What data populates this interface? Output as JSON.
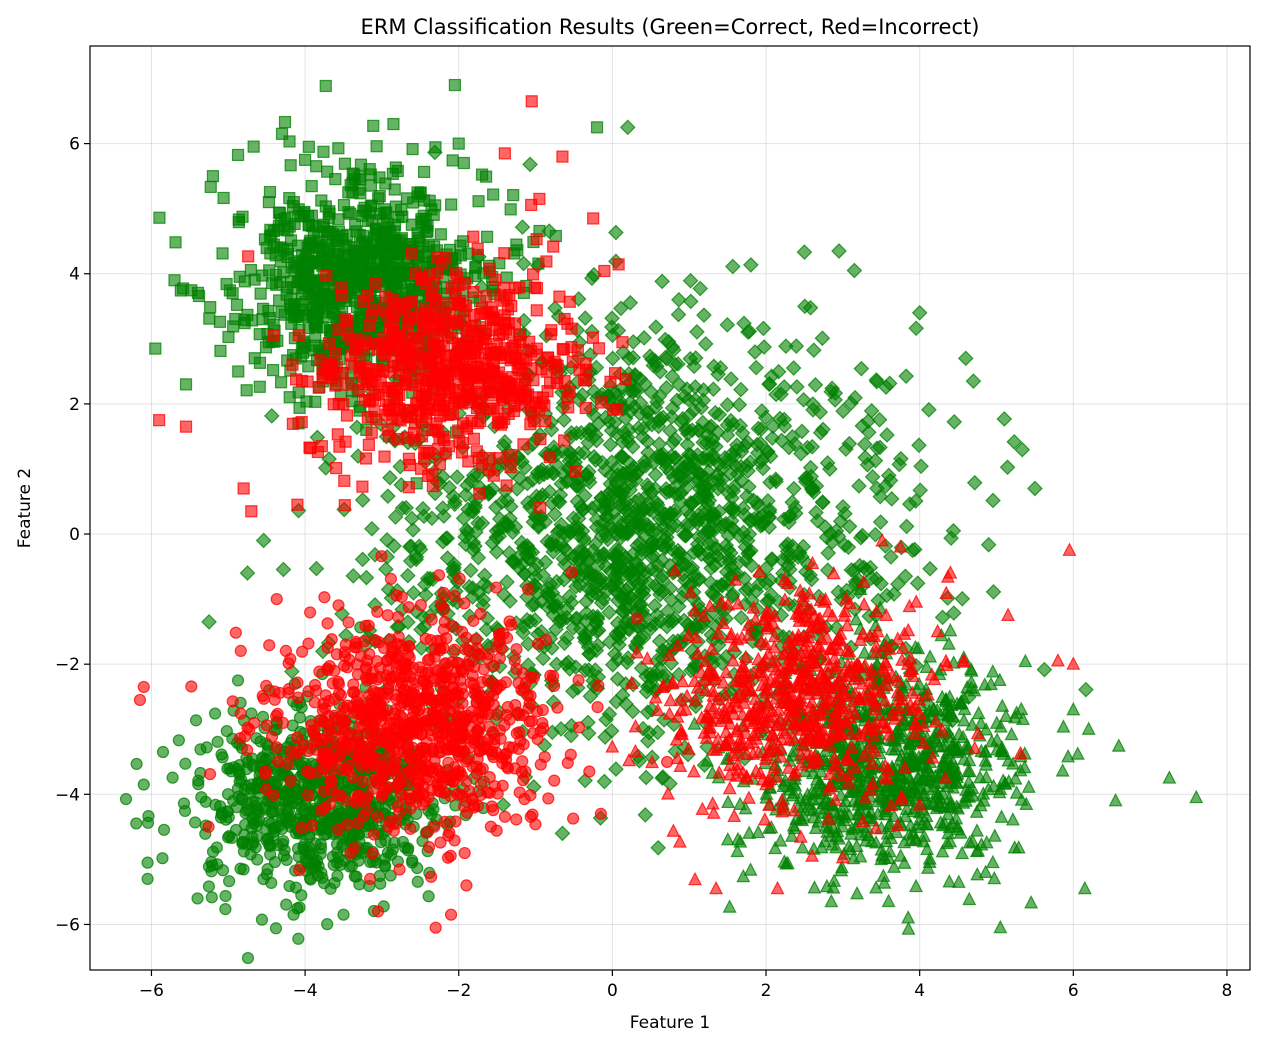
{
  "chart_data": {
    "type": "scatter",
    "title": "ERM Classification Results (Green=Correct, Red=Incorrect)",
    "xlabel": "Feature 1",
    "ylabel": "Feature 2",
    "xlim": [
      -6.8,
      8.3
    ],
    "ylim": [
      -6.7,
      7.5
    ],
    "xticks": [
      -6,
      -4,
      -2,
      0,
      2,
      4,
      6,
      8
    ],
    "yticks": [
      -6,
      -4,
      -2,
      0,
      2,
      4,
      6
    ],
    "xtick_labels": [
      "−6",
      "−4",
      "−2",
      "0",
      "2",
      "4",
      "6",
      "8"
    ],
    "ytick_labels": [
      "−6",
      "−4",
      "−2",
      "0",
      "2",
      "4",
      "6"
    ],
    "grid": true,
    "colors": {
      "correct": "#008000",
      "incorrect": "#ff0000"
    },
    "marker_alpha": 0.6,
    "classes": [
      {
        "marker": "square",
        "correct_center": [
          -3.3,
          3.8
        ],
        "correct_spread": [
          0.8,
          0.85
        ],
        "correct_count": 900,
        "incorrect_center": [
          -2.1,
          2.6
        ],
        "incorrect_spread": [
          0.85,
          0.75
        ],
        "incorrect_count": 650,
        "points_correct": [
          [
            -2.05,
            6.9
          ],
          [
            -2.85,
            6.3
          ],
          [
            -4.3,
            6.15
          ],
          [
            -0.2,
            6.25
          ],
          [
            -5.7,
            3.9
          ],
          [
            -5.95,
            2.85
          ],
          [
            -5.55,
            2.3
          ],
          [
            -5.2,
            5.5
          ],
          [
            -2.0,
            6.0
          ],
          [
            -4.0,
            5.75
          ]
        ],
        "points_incorrect": [
          [
            -1.05,
            6.65
          ],
          [
            -0.65,
            5.8
          ],
          [
            -1.4,
            5.85
          ],
          [
            -0.95,
            5.15
          ],
          [
            -0.25,
            4.85
          ],
          [
            -5.9,
            1.75
          ],
          [
            -5.55,
            1.65
          ],
          [
            -4.8,
            0.7
          ],
          [
            -4.7,
            0.35
          ],
          [
            -4.1,
            0.45
          ]
        ]
      },
      {
        "marker": "diamond",
        "correct_center": [
          0.4,
          0.1
        ],
        "correct_spread": [
          1.7,
          1.55
        ],
        "correct_count": 1700,
        "incorrect_center": [
          0.0,
          0.0
        ],
        "incorrect_spread": [
          0.0,
          0.0
        ],
        "incorrect_count": 0,
        "points_correct": [
          [
            0.2,
            6.25
          ],
          [
            2.95,
            4.35
          ],
          [
            3.15,
            4.05
          ],
          [
            5.5,
            0.7
          ],
          [
            4.0,
            3.4
          ],
          [
            4.6,
            2.7
          ],
          [
            4.7,
            2.35
          ],
          [
            -5.25,
            -1.35
          ],
          [
            -4.75,
            -0.6
          ],
          [
            -0.65,
            -4.6
          ]
        ],
        "points_incorrect": []
      },
      {
        "marker": "triangle",
        "correct_center": [
          3.6,
          -3.6
        ],
        "correct_spread": [
          0.9,
          0.8
        ],
        "correct_count": 900,
        "incorrect_center": [
          2.4,
          -2.5
        ],
        "incorrect_spread": [
          0.85,
          0.8
        ],
        "incorrect_count": 650,
        "points_correct": [
          [
            7.6,
            -4.05
          ],
          [
            7.25,
            -3.75
          ],
          [
            6.55,
            -4.1
          ],
          [
            6.15,
            -5.45
          ],
          [
            5.05,
            -6.05
          ],
          [
            6.0,
            -2.7
          ],
          [
            6.2,
            -3.0
          ],
          [
            3.85,
            -5.9
          ],
          [
            2.85,
            -5.65
          ]
        ],
        "points_incorrect": [
          [
            5.95,
            -0.25
          ],
          [
            6.0,
            -2.0
          ],
          [
            5.8,
            -1.95
          ],
          [
            5.15,
            -1.25
          ],
          [
            4.4,
            -0.6
          ],
          [
            3.75,
            -0.2
          ],
          [
            1.35,
            -5.45
          ],
          [
            2.15,
            -5.45
          ],
          [
            2.6,
            -4.95
          ]
        ]
      },
      {
        "marker": "circle",
        "correct_center": [
          -3.8,
          -4.1
        ],
        "correct_spread": [
          0.8,
          0.7
        ],
        "correct_count": 800,
        "incorrect_center": [
          -2.6,
          -2.9
        ],
        "incorrect_spread": [
          0.85,
          0.85
        ],
        "incorrect_count": 900,
        "points_correct": [
          [
            -6.05,
            -5.3
          ],
          [
            -6.05,
            -5.05
          ],
          [
            -5.4,
            -5.6
          ],
          [
            -4.15,
            -5.85
          ],
          [
            -3.5,
            -5.85
          ],
          [
            -6.1,
            -3.85
          ],
          [
            -5.85,
            -3.35
          ],
          [
            -4.05,
            -5.55
          ]
        ],
        "points_incorrect": [
          [
            -6.15,
            -2.55
          ],
          [
            -6.1,
            -2.35
          ],
          [
            -2.3,
            -6.05
          ],
          [
            -2.1,
            -5.85
          ],
          [
            -3.05,
            -5.8
          ],
          [
            -0.15,
            -4.3
          ],
          [
            -0.3,
            -3.65
          ],
          [
            -1.9,
            -5.4
          ]
        ]
      }
    ]
  }
}
